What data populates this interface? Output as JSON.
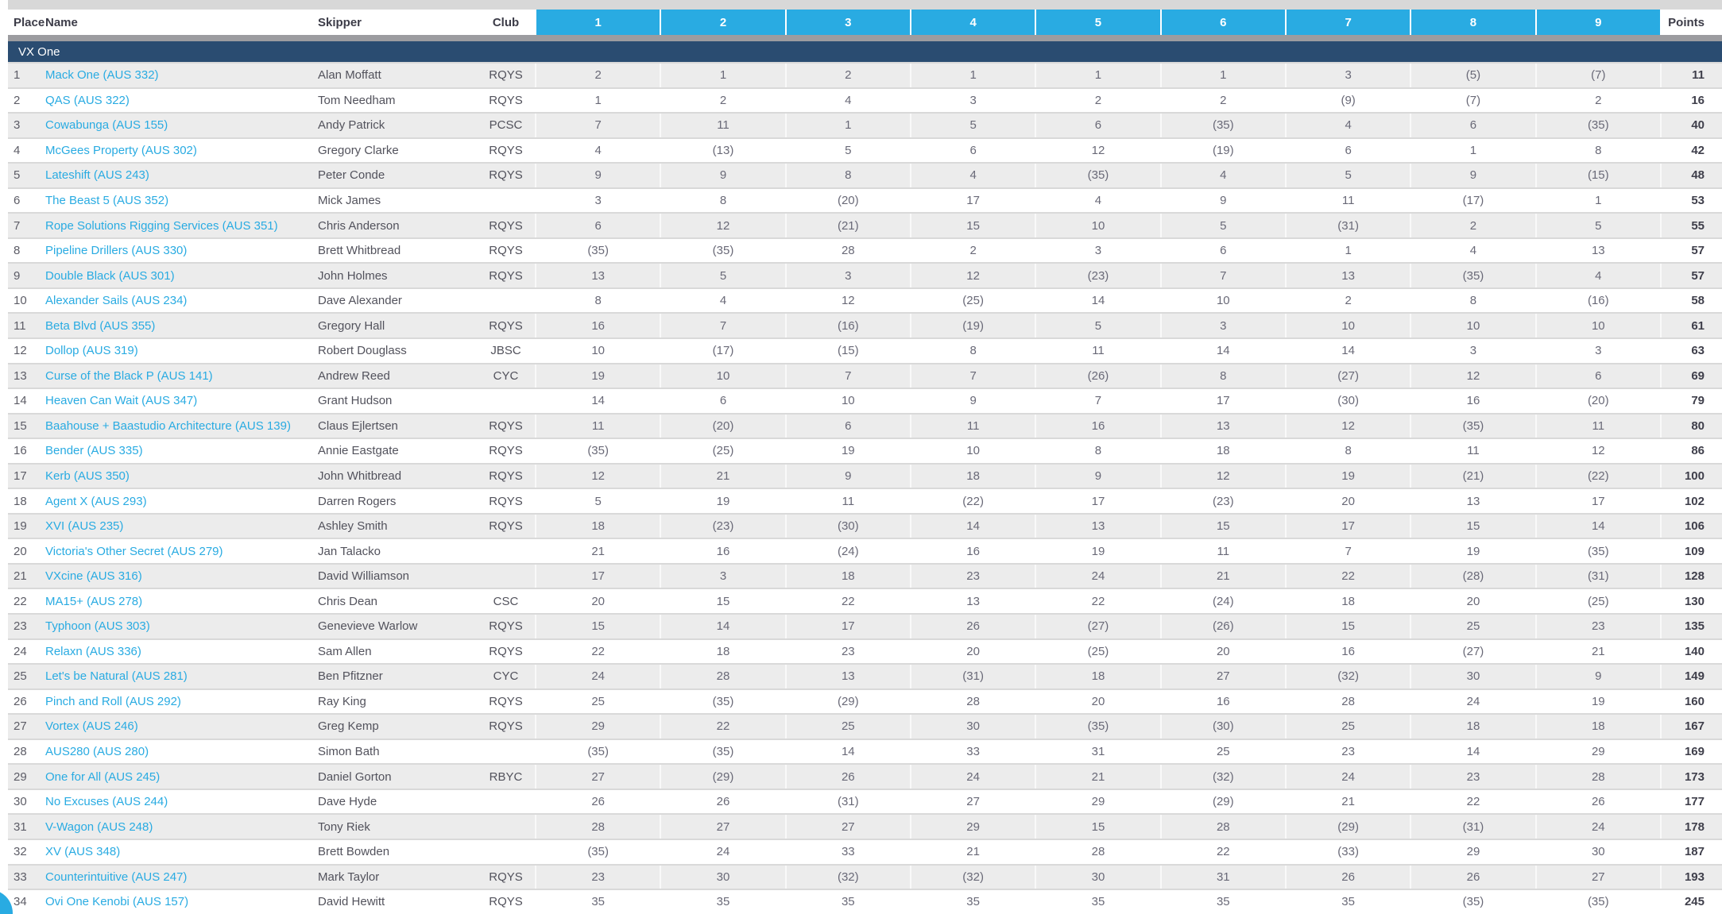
{
  "header": {
    "place": "Place",
    "name": "Name",
    "skipper": "Skipper",
    "club": "Club",
    "race_columns": [
      "1",
      "2",
      "3",
      "4",
      "5",
      "6",
      "7",
      "8",
      "9"
    ],
    "points": "Points"
  },
  "section": {
    "title": "VX One"
  },
  "colors": {
    "accent_cyan": "#29ABE2",
    "navy_band": "#2A4C71",
    "row_stripe": "#ECECEC"
  },
  "rows": [
    {
      "place": "1",
      "name": "Mack One (AUS 332)",
      "skipper": "Alan Moffatt",
      "club": "RQYS",
      "races": [
        "2",
        "1",
        "2",
        "1",
        "1",
        "1",
        "3",
        "(5)",
        "(7)"
      ],
      "points": "11"
    },
    {
      "place": "2",
      "name": "QAS (AUS 322)",
      "skipper": "Tom Needham",
      "club": "RQYS",
      "races": [
        "1",
        "2",
        "4",
        "3",
        "2",
        "2",
        "(9)",
        "(7)",
        "2"
      ],
      "points": "16"
    },
    {
      "place": "3",
      "name": "Cowabunga (AUS 155)",
      "skipper": "Andy Patrick",
      "club": "PCSC",
      "races": [
        "7",
        "11",
        "1",
        "5",
        "6",
        "(35)",
        "4",
        "6",
        "(35)"
      ],
      "points": "40"
    },
    {
      "place": "4",
      "name": "McGees Property (AUS 302)",
      "skipper": "Gregory Clarke",
      "club": "RQYS",
      "races": [
        "4",
        "(13)",
        "5",
        "6",
        "12",
        "(19)",
        "6",
        "1",
        "8"
      ],
      "points": "42"
    },
    {
      "place": "5",
      "name": "Lateshift (AUS 243)",
      "skipper": "Peter Conde",
      "club": "RQYS",
      "races": [
        "9",
        "9",
        "8",
        "4",
        "(35)",
        "4",
        "5",
        "9",
        "(15)"
      ],
      "points": "48"
    },
    {
      "place": "6",
      "name": "The Beast 5 (AUS 352)",
      "skipper": "Mick James",
      "club": "",
      "races": [
        "3",
        "8",
        "(20)",
        "17",
        "4",
        "9",
        "11",
        "(17)",
        "1"
      ],
      "points": "53"
    },
    {
      "place": "7",
      "name": "Rope Solutions Rigging Services (AUS 351)",
      "skipper": "Chris Anderson",
      "club": "RQYS",
      "races": [
        "6",
        "12",
        "(21)",
        "15",
        "10",
        "5",
        "(31)",
        "2",
        "5"
      ],
      "points": "55"
    },
    {
      "place": "8",
      "name": "Pipeline Drillers (AUS 330)",
      "skipper": "Brett Whitbread",
      "club": "RQYS",
      "races": [
        "(35)",
        "(35)",
        "28",
        "2",
        "3",
        "6",
        "1",
        "4",
        "13"
      ],
      "points": "57"
    },
    {
      "place": "9",
      "name": "Double Black (AUS 301)",
      "skipper": "John Holmes",
      "club": "RQYS",
      "races": [
        "13",
        "5",
        "3",
        "12",
        "(23)",
        "7",
        "13",
        "(35)",
        "4"
      ],
      "points": "57"
    },
    {
      "place": "10",
      "name": "Alexander Sails (AUS 234)",
      "skipper": "Dave Alexander",
      "club": "",
      "races": [
        "8",
        "4",
        "12",
        "(25)",
        "14",
        "10",
        "2",
        "8",
        "(16)"
      ],
      "points": "58"
    },
    {
      "place": "11",
      "name": "Beta Blvd (AUS 355)",
      "skipper": "Gregory Hall",
      "club": "RQYS",
      "races": [
        "16",
        "7",
        "(16)",
        "(19)",
        "5",
        "3",
        "10",
        "10",
        "10"
      ],
      "points": "61"
    },
    {
      "place": "12",
      "name": "Dollop (AUS 319)",
      "skipper": "Robert Douglass",
      "club": "JBSC",
      "races": [
        "10",
        "(17)",
        "(15)",
        "8",
        "11",
        "14",
        "14",
        "3",
        "3"
      ],
      "points": "63"
    },
    {
      "place": "13",
      "name": "Curse of the Black P (AUS 141)",
      "skipper": "Andrew Reed",
      "club": "CYC",
      "races": [
        "19",
        "10",
        "7",
        "7",
        "(26)",
        "8",
        "(27)",
        "12",
        "6"
      ],
      "points": "69"
    },
    {
      "place": "14",
      "name": "Heaven Can Wait (AUS 347)",
      "skipper": "Grant Hudson",
      "club": "",
      "races": [
        "14",
        "6",
        "10",
        "9",
        "7",
        "17",
        "(30)",
        "16",
        "(20)"
      ],
      "points": "79"
    },
    {
      "place": "15",
      "name": "Baahouse + Baastudio Architecture (AUS 139)",
      "skipper": "Claus Ejlertsen",
      "club": "RQYS",
      "races": [
        "11",
        "(20)",
        "6",
        "11",
        "16",
        "13",
        "12",
        "(35)",
        "11"
      ],
      "points": "80"
    },
    {
      "place": "16",
      "name": "Bender (AUS 335)",
      "skipper": "Annie Eastgate",
      "club": "RQYS",
      "races": [
        "(35)",
        "(25)",
        "19",
        "10",
        "8",
        "18",
        "8",
        "11",
        "12"
      ],
      "points": "86"
    },
    {
      "place": "17",
      "name": "Kerb (AUS 350)",
      "skipper": "John Whitbread",
      "club": "RQYS",
      "races": [
        "12",
        "21",
        "9",
        "18",
        "9",
        "12",
        "19",
        "(21)",
        "(22)"
      ],
      "points": "100"
    },
    {
      "place": "18",
      "name": "Agent X (AUS 293)",
      "skipper": "Darren Rogers",
      "club": "RQYS",
      "races": [
        "5",
        "19",
        "11",
        "(22)",
        "17",
        "(23)",
        "20",
        "13",
        "17"
      ],
      "points": "102"
    },
    {
      "place": "19",
      "name": "XVI (AUS 235)",
      "skipper": "Ashley Smith",
      "club": "RQYS",
      "races": [
        "18",
        "(23)",
        "(30)",
        "14",
        "13",
        "15",
        "17",
        "15",
        "14"
      ],
      "points": "106"
    },
    {
      "place": "20",
      "name": "Victoria's Other Secret (AUS 279)",
      "skipper": "Jan Talacko",
      "club": "",
      "races": [
        "21",
        "16",
        "(24)",
        "16",
        "19",
        "11",
        "7",
        "19",
        "(35)"
      ],
      "points": "109"
    },
    {
      "place": "21",
      "name": "VXcine (AUS 316)",
      "skipper": "David Williamson",
      "club": "",
      "races": [
        "17",
        "3",
        "18",
        "23",
        "24",
        "21",
        "22",
        "(28)",
        "(31)"
      ],
      "points": "128"
    },
    {
      "place": "22",
      "name": "MA15+ (AUS 278)",
      "skipper": "Chris Dean",
      "club": "CSC",
      "races": [
        "20",
        "15",
        "22",
        "13",
        "22",
        "(24)",
        "18",
        "20",
        "(25)"
      ],
      "points": "130"
    },
    {
      "place": "23",
      "name": "Typhoon (AUS 303)",
      "skipper": "Genevieve Warlow",
      "club": "RQYS",
      "races": [
        "15",
        "14",
        "17",
        "26",
        "(27)",
        "(26)",
        "15",
        "25",
        "23"
      ],
      "points": "135"
    },
    {
      "place": "24",
      "name": "Relaxn (AUS 336)",
      "skipper": "Sam Allen",
      "club": "RQYS",
      "races": [
        "22",
        "18",
        "23",
        "20",
        "(25)",
        "20",
        "16",
        "(27)",
        "21"
      ],
      "points": "140"
    },
    {
      "place": "25",
      "name": "Let's be Natural (AUS 281)",
      "skipper": "Ben Pfitzner",
      "club": "CYC",
      "races": [
        "24",
        "28",
        "13",
        "(31)",
        "18",
        "27",
        "(32)",
        "30",
        "9"
      ],
      "points": "149"
    },
    {
      "place": "26",
      "name": "Pinch and Roll (AUS 292)",
      "skipper": "Ray King",
      "club": "RQYS",
      "races": [
        "25",
        "(35)",
        "(29)",
        "28",
        "20",
        "16",
        "28",
        "24",
        "19"
      ],
      "points": "160"
    },
    {
      "place": "27",
      "name": "Vortex (AUS 246)",
      "skipper": "Greg Kemp",
      "club": "RQYS",
      "races": [
        "29",
        "22",
        "25",
        "30",
        "(35)",
        "(30)",
        "25",
        "18",
        "18"
      ],
      "points": "167"
    },
    {
      "place": "28",
      "name": "AUS280 (AUS 280)",
      "skipper": "Simon Bath",
      "club": "",
      "races": [
        "(35)",
        "(35)",
        "14",
        "33",
        "31",
        "25",
        "23",
        "14",
        "29"
      ],
      "points": "169"
    },
    {
      "place": "29",
      "name": "One for All (AUS 245)",
      "skipper": "Daniel Gorton",
      "club": "RBYC",
      "races": [
        "27",
        "(29)",
        "26",
        "24",
        "21",
        "(32)",
        "24",
        "23",
        "28"
      ],
      "points": "173"
    },
    {
      "place": "30",
      "name": "No Excuses (AUS 244)",
      "skipper": "Dave Hyde",
      "club": "",
      "races": [
        "26",
        "26",
        "(31)",
        "27",
        "29",
        "(29)",
        "21",
        "22",
        "26"
      ],
      "points": "177"
    },
    {
      "place": "31",
      "name": "V-Wagon (AUS 248)",
      "skipper": "Tony Riek",
      "club": "",
      "races": [
        "28",
        "27",
        "27",
        "29",
        "15",
        "28",
        "(29)",
        "(31)",
        "24"
      ],
      "points": "178"
    },
    {
      "place": "32",
      "name": "XV (AUS 348)",
      "skipper": "Brett Bowden",
      "club": "",
      "races": [
        "(35)",
        "24",
        "33",
        "21",
        "28",
        "22",
        "(33)",
        "29",
        "30"
      ],
      "points": "187"
    },
    {
      "place": "33",
      "name": "Counterintuitive (AUS 247)",
      "skipper": "Mark Taylor",
      "club": "RQYS",
      "races": [
        "23",
        "30",
        "(32)",
        "(32)",
        "30",
        "31",
        "26",
        "26",
        "27"
      ],
      "points": "193"
    },
    {
      "place": "34",
      "name": "Ovi One Kenobi (AUS 157)",
      "skipper": "David Hewitt",
      "club": "RQYS",
      "races": [
        "35",
        "35",
        "35",
        "35",
        "35",
        "35",
        "35",
        "(35)",
        "(35)"
      ],
      "points": "245"
    }
  ]
}
